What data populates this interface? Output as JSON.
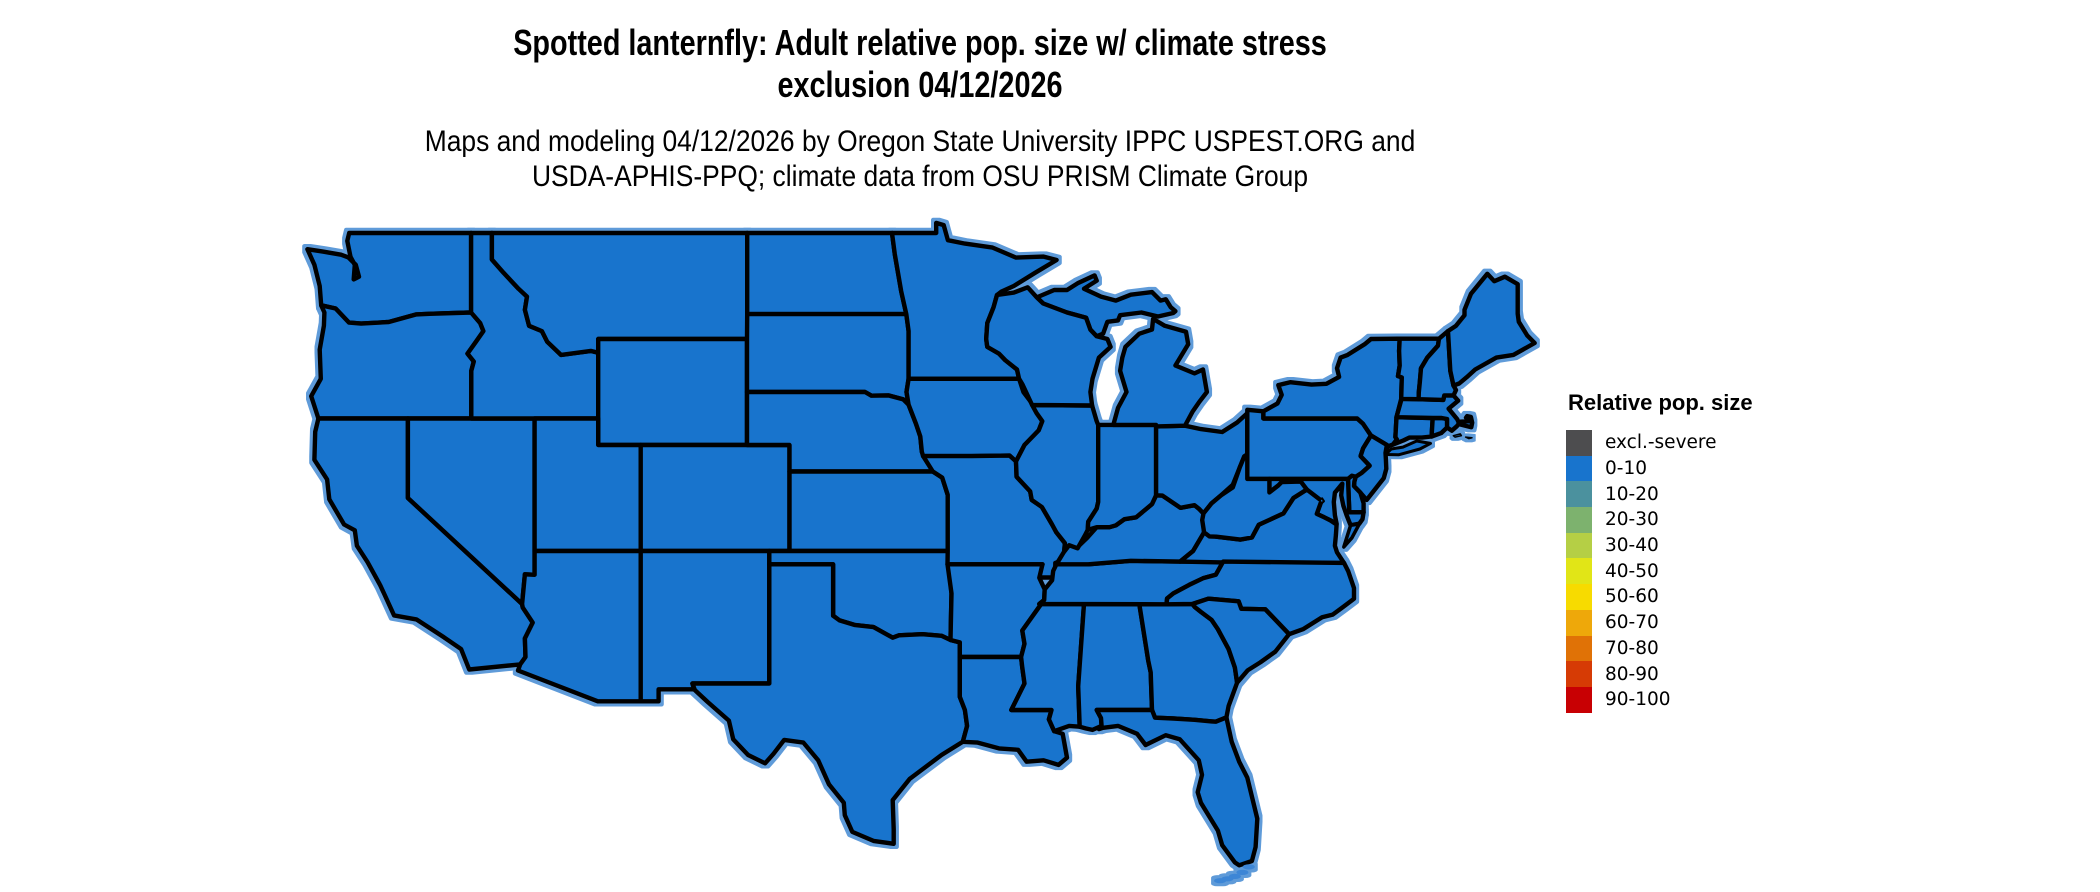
{
  "figure": {
    "title_line1": "Spotted lanternfly: Adult relative pop. size w/ climate stress",
    "title_line2": "exclusion 04/12/2026",
    "subtitle_line1": "Maps and modeling 04/12/2026 by Oregon State University IPPC USPEST.ORG and",
    "subtitle_line2": "USDA-APHIS-PPQ; climate data from OSU PRISM Climate Group"
  },
  "legend": {
    "title": "Relative pop. size",
    "entries": [
      {
        "label": "excl.-severe",
        "color": "#4d4d4f"
      },
      {
        "label": "0-10",
        "color": "#1874cd"
      },
      {
        "label": "10-20",
        "color": "#4b919e"
      },
      {
        "label": "20-30",
        "color": "#7db26e"
      },
      {
        "label": "30-40",
        "color": "#b5cf45"
      },
      {
        "label": "40-50",
        "color": "#e1e517"
      },
      {
        "label": "50-60",
        "color": "#f7db00"
      },
      {
        "label": "60-70",
        "color": "#eea80a"
      },
      {
        "label": "70-80",
        "color": "#e07206"
      },
      {
        "label": "80-90",
        "color": "#d63b05"
      },
      {
        "label": "90-100",
        "color": "#c80003"
      }
    ]
  },
  "map": {
    "border_color": "#000000",
    "water_outline_color": "#5f9bd9",
    "islands_color": "#3d86d6",
    "uniform_value": "0-10",
    "states": [
      {
        "code": "WA",
        "name": "Washington",
        "value": "0-10"
      },
      {
        "code": "OR",
        "name": "Oregon",
        "value": "0-10"
      },
      {
        "code": "CA",
        "name": "California",
        "value": "0-10"
      },
      {
        "code": "NV",
        "name": "Nevada",
        "value": "0-10"
      },
      {
        "code": "ID",
        "name": "Idaho",
        "value": "0-10"
      },
      {
        "code": "MT",
        "name": "Montana",
        "value": "0-10"
      },
      {
        "code": "WY",
        "name": "Wyoming",
        "value": "0-10"
      },
      {
        "code": "UT",
        "name": "Utah",
        "value": "0-10"
      },
      {
        "code": "CO",
        "name": "Colorado",
        "value": "0-10"
      },
      {
        "code": "AZ",
        "name": "Arizona",
        "value": "0-10"
      },
      {
        "code": "NM",
        "name": "New Mexico",
        "value": "0-10"
      },
      {
        "code": "ND",
        "name": "North Dakota",
        "value": "0-10"
      },
      {
        "code": "SD",
        "name": "South Dakota",
        "value": "0-10"
      },
      {
        "code": "NE",
        "name": "Nebraska",
        "value": "0-10"
      },
      {
        "code": "KS",
        "name": "Kansas",
        "value": "0-10"
      },
      {
        "code": "OK",
        "name": "Oklahoma",
        "value": "0-10"
      },
      {
        "code": "TX",
        "name": "Texas",
        "value": "0-10"
      },
      {
        "code": "MN",
        "name": "Minnesota",
        "value": "0-10"
      },
      {
        "code": "IA",
        "name": "Iowa",
        "value": "0-10"
      },
      {
        "code": "MO",
        "name": "Missouri",
        "value": "0-10"
      },
      {
        "code": "AR",
        "name": "Arkansas",
        "value": "0-10"
      },
      {
        "code": "LA",
        "name": "Louisiana",
        "value": "0-10"
      },
      {
        "code": "MS",
        "name": "Mississippi",
        "value": "0-10"
      },
      {
        "code": "AL",
        "name": "Alabama",
        "value": "0-10"
      },
      {
        "code": "GA",
        "name": "Georgia",
        "value": "0-10"
      },
      {
        "code": "FL",
        "name": "Florida",
        "value": "0-10"
      },
      {
        "code": "TN",
        "name": "Tennessee",
        "value": "0-10"
      },
      {
        "code": "KY",
        "name": "Kentucky",
        "value": "0-10"
      },
      {
        "code": "IL",
        "name": "Illinois",
        "value": "0-10"
      },
      {
        "code": "IN",
        "name": "Indiana",
        "value": "0-10"
      },
      {
        "code": "OH",
        "name": "Ohio",
        "value": "0-10"
      },
      {
        "code": "MI",
        "name": "Michigan",
        "value": "0-10"
      },
      {
        "code": "WI",
        "name": "Wisconsin",
        "value": "0-10"
      },
      {
        "code": "PA",
        "name": "Pennsylvania",
        "value": "0-10"
      },
      {
        "code": "NY",
        "name": "New York",
        "value": "0-10"
      },
      {
        "code": "NJ",
        "name": "New Jersey",
        "value": "0-10"
      },
      {
        "code": "DE",
        "name": "Delaware",
        "value": "0-10"
      },
      {
        "code": "MD",
        "name": "Maryland",
        "value": "0-10"
      },
      {
        "code": "VA",
        "name": "Virginia",
        "value": "0-10"
      },
      {
        "code": "WV",
        "name": "West Virginia",
        "value": "0-10"
      },
      {
        "code": "NC",
        "name": "North Carolina",
        "value": "0-10"
      },
      {
        "code": "SC",
        "name": "South Carolina",
        "value": "0-10"
      },
      {
        "code": "CT",
        "name": "Connecticut",
        "value": "0-10"
      },
      {
        "code": "RI",
        "name": "Rhode Island",
        "value": "0-10"
      },
      {
        "code": "MA",
        "name": "Massachusetts",
        "value": "0-10"
      },
      {
        "code": "VT",
        "name": "Vermont",
        "value": "0-10"
      },
      {
        "code": "NH",
        "name": "New Hampshire",
        "value": "0-10"
      },
      {
        "code": "ME",
        "name": "Maine",
        "value": "0-10"
      },
      {
        "code": "DC",
        "name": "District of Columbia",
        "value": "0-10"
      }
    ]
  },
  "chart_data": {
    "type": "choropleth",
    "title": "Spotted lanternfly: Adult relative pop. size w/ climate stress exclusion 04/12/2026",
    "legend_title": "Relative pop. size",
    "bins": [
      "excl.-severe",
      "0-10",
      "10-20",
      "20-30",
      "30-40",
      "40-50",
      "50-60",
      "60-70",
      "70-80",
      "80-90",
      "90-100"
    ],
    "uniform_value": "0-10"
  }
}
